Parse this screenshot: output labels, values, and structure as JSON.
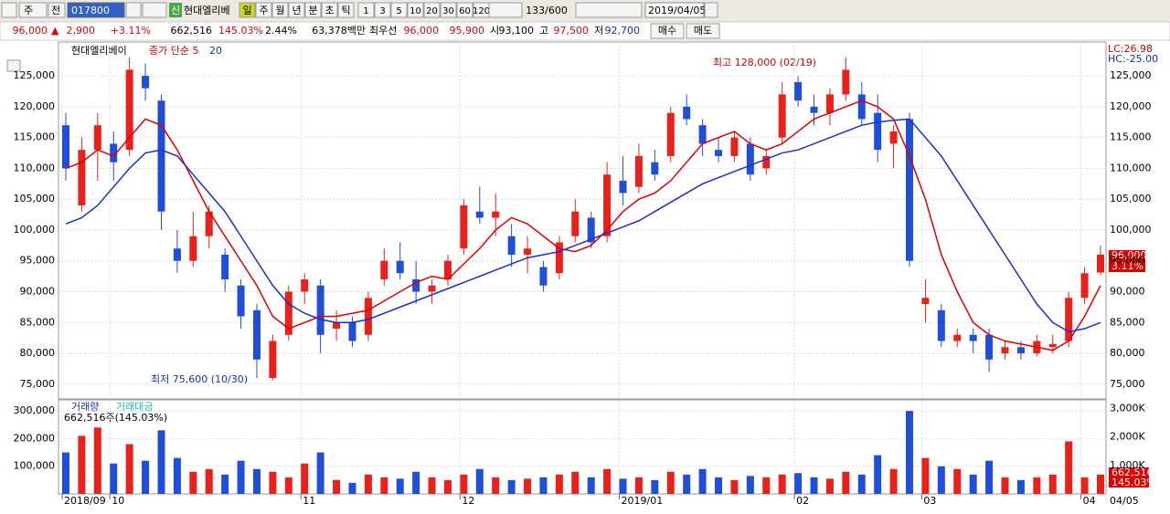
{
  "toolbar": {
    "period": "주",
    "prev": "전",
    "code": "017800",
    "sin": "신",
    "name": "현대엘리베",
    "intervals": [
      "일",
      "주",
      "월",
      "년",
      "분",
      "초",
      "틱"
    ],
    "steps": [
      "1",
      "3",
      "5",
      "10",
      "20",
      "30",
      "60",
      "120"
    ],
    "count": "133/600",
    "date": "2019/04/05"
  },
  "quote": {
    "price": "96,000",
    "arrow": "▲",
    "change": "2,900",
    "rate": "+3.11%",
    "volume": "662,516",
    "volume_rate": "145.03%",
    "turnover": "2.44%",
    "amount": "63,378백만",
    "best": "최우선",
    "ask": "96,000",
    "bid": "95,900",
    "open_label": "시",
    "open": "93,100",
    "high_label": "고",
    "high": "97,500",
    "low_label": "저",
    "low": "92,700",
    "buy": "매수",
    "sell": "매도"
  },
  "chart_data": [
    {
      "type": "candlestick",
      "title": "현대엘리베이",
      "lc": "LC:26.98",
      "hc": "HC:-25.00",
      "annotation_high": "최고 128,000 (02/19)",
      "annotation_low": "최저 75,600 (10/30)",
      "last_price_label": "96,000",
      "last_change_label": "3.11%",
      "last_date": "04/05",
      "up_color": "#e8211b",
      "down_color": "#1f4fd8",
      "ylim": [
        72600,
        130500
      ],
      "yticks": [
        {
          "value": 75000,
          "label": "75,000"
        },
        {
          "value": 80000,
          "label": "80,000"
        },
        {
          "value": 85000,
          "label": "85,000"
        },
        {
          "value": 90000,
          "label": "90,000"
        },
        {
          "value": 95000,
          "label": "95,000"
        },
        {
          "value": 100000,
          "label": "100,000"
        },
        {
          "value": 105000,
          "label": "105,000"
        },
        {
          "value": 110000,
          "label": "110,000"
        },
        {
          "value": 115000,
          "label": "115,000"
        },
        {
          "value": 120000,
          "label": "120,000"
        },
        {
          "value": 125000,
          "label": "125,000"
        }
      ],
      "categories": [
        "2018/09",
        null,
        null,
        "10",
        null,
        null,
        null,
        null,
        null,
        null,
        null,
        null,
        null,
        null,
        null,
        "11",
        null,
        null,
        null,
        null,
        null,
        null,
        null,
        null,
        null,
        "12",
        null,
        null,
        null,
        null,
        null,
        null,
        null,
        null,
        null,
        "2019/01",
        null,
        null,
        null,
        null,
        null,
        null,
        null,
        null,
        null,
        null,
        "02",
        null,
        null,
        null,
        null,
        null,
        null,
        null,
        "03",
        null,
        null,
        null,
        null,
        null,
        null,
        null,
        null,
        null,
        "04",
        null
      ],
      "ohlc": [
        [
          117000,
          119000,
          108000,
          110000
        ],
        [
          104000,
          115000,
          103000,
          113000
        ],
        [
          113000,
          119000,
          108000,
          117000
        ],
        [
          114000,
          116000,
          108000,
          111000
        ],
        [
          113000,
          128000,
          112000,
          126000
        ],
        [
          125000,
          127000,
          121000,
          123000
        ],
        [
          121000,
          122000,
          100000,
          103000
        ],
        [
          97000,
          100000,
          93000,
          95000
        ],
        [
          95000,
          103000,
          94000,
          99000
        ],
        [
          99000,
          104000,
          97000,
          103000
        ],
        [
          96000,
          97000,
          90000,
          92000
        ],
        [
          91000,
          92000,
          84000,
          86000
        ],
        [
          87000,
          88000,
          76000,
          79000
        ],
        [
          76000,
          83000,
          75600,
          82000
        ],
        [
          83000,
          91000,
          82000,
          90000
        ],
        [
          90000,
          93000,
          88000,
          92000
        ],
        [
          91000,
          92000,
          80000,
          83000
        ],
        [
          84000,
          87000,
          82000,
          85000
        ],
        [
          85000,
          86000,
          81000,
          82000
        ],
        [
          83000,
          90000,
          82000,
          89000
        ],
        [
          92000,
          97000,
          91000,
          95000
        ],
        [
          95000,
          98000,
          92000,
          93000
        ],
        [
          92000,
          95000,
          88000,
          90000
        ],
        [
          90000,
          92000,
          88000,
          91000
        ],
        [
          92000,
          96000,
          91000,
          95000
        ],
        [
          97000,
          105000,
          96000,
          104000
        ],
        [
          103000,
          107000,
          101000,
          102000
        ],
        [
          102000,
          106000,
          99000,
          103000
        ],
        [
          99000,
          101000,
          94000,
          96000
        ],
        [
          96000,
          99000,
          93000,
          97000
        ],
        [
          94000,
          95000,
          90000,
          91000
        ],
        [
          93000,
          99000,
          92000,
          98000
        ],
        [
          99000,
          105000,
          98000,
          103000
        ],
        [
          102000,
          103000,
          97000,
          98000
        ],
        [
          99000,
          111000,
          98000,
          109000
        ],
        [
          108000,
          112000,
          104000,
          106000
        ],
        [
          107000,
          114000,
          106000,
          112000
        ],
        [
          111000,
          113000,
          108000,
          109000
        ],
        [
          112000,
          120000,
          111000,
          119000
        ],
        [
          120000,
          122000,
          117000,
          118000
        ],
        [
          117000,
          118000,
          112000,
          114000
        ],
        [
          113000,
          115000,
          111000,
          112000
        ],
        [
          112000,
          116000,
          111000,
          115000
        ],
        [
          114000,
          115000,
          108000,
          109000
        ],
        [
          110000,
          113000,
          109000,
          112000
        ],
        [
          115000,
          124000,
          114000,
          122000
        ],
        [
          124000,
          125000,
          120000,
          121000
        ],
        [
          120000,
          122000,
          117000,
          119000
        ],
        [
          119000,
          123000,
          117000,
          122000
        ],
        [
          122000,
          128000,
          121000,
          126000
        ],
        [
          122000,
          124000,
          117000,
          118000
        ],
        [
          119000,
          122000,
          111000,
          113000
        ],
        [
          114000,
          117000,
          110000,
          116000
        ],
        [
          118000,
          119000,
          94000,
          95000
        ],
        [
          88000,
          92000,
          85000,
          89000
        ],
        [
          87000,
          88000,
          81000,
          82000
        ],
        [
          82000,
          84000,
          81000,
          83000
        ],
        [
          83000,
          84000,
          80000,
          82000
        ],
        [
          83000,
          84000,
          77000,
          79000
        ],
        [
          80000,
          82000,
          79000,
          81000
        ],
        [
          81000,
          82000,
          79000,
          80000
        ],
        [
          80000,
          83000,
          79500,
          82000
        ],
        [
          81000,
          83000,
          80000,
          81500
        ],
        [
          82000,
          90000,
          81000,
          89000
        ],
        [
          89000,
          94000,
          88000,
          93000
        ],
        [
          93100,
          97500,
          92700,
          96000
        ]
      ],
      "series": [
        {
          "name": "종가 단순 5",
          "color": "#e00000",
          "values": [
            110000,
            111000,
            113000,
            112000,
            115000,
            118000,
            117000,
            113000,
            108000,
            103000,
            99000,
            95000,
            91000,
            86000,
            84000,
            85000,
            86000,
            86000,
            86500,
            87000,
            88500,
            90000,
            91500,
            92500,
            92000,
            94500,
            97000,
            100000,
            102000,
            101000,
            99000,
            97000,
            96500,
            97500,
            100000,
            103000,
            105000,
            106000,
            108000,
            111000,
            114000,
            115000,
            116000,
            114000,
            113000,
            114000,
            116000,
            118000,
            119000,
            120000,
            121000,
            120000,
            118000,
            112000,
            105000,
            96000,
            90000,
            85000,
            83000,
            82000,
            81500,
            81000,
            80500,
            82000,
            86000,
            91000
          ]
        },
        {
          "name": "20",
          "color": "#1a2fd0",
          "values": [
            101000,
            102000,
            104000,
            107000,
            110000,
            112500,
            113000,
            112000,
            109000,
            106000,
            103000,
            99000,
            95000,
            91000,
            88000,
            86500,
            85500,
            85000,
            85000,
            85500,
            86500,
            87500,
            88500,
            89500,
            90500,
            91500,
            92500,
            93500,
            94500,
            95500,
            96000,
            96500,
            97500,
            98500,
            99500,
            100500,
            101500,
            103000,
            104500,
            106000,
            107500,
            108500,
            109500,
            110500,
            111500,
            112500,
            113000,
            114000,
            115000,
            116000,
            117000,
            117500,
            117800,
            118000,
            115000,
            112000,
            108000,
            104000,
            100000,
            96000,
            92000,
            88000,
            85000,
            83500,
            84000,
            85000
          ]
        }
      ]
    },
    {
      "type": "bar",
      "title": "거래량",
      "subtitle": "거래대금",
      "volume_label": "662,516주(145.03%)",
      "tag_volume": "662,516",
      "tag_rate": "145.03%",
      "ylim": [
        0,
        340000
      ],
      "yticks": [
        {
          "value": 100000,
          "label": "100,000"
        },
        {
          "value": 200000,
          "label": "200,000"
        },
        {
          "value": 300000,
          "label": "300,000"
        }
      ],
      "y2lim": [
        0,
        3300
      ],
      "y2ticks": [
        {
          "value": 1000,
          "label": "1,000K"
        },
        {
          "value": 2000,
          "label": "2,000K"
        },
        {
          "value": 3000,
          "label": "3,000K"
        }
      ],
      "values": [
        150000,
        210000,
        240000,
        110000,
        180000,
        120000,
        230000,
        130000,
        80000,
        90000,
        70000,
        120000,
        90000,
        80000,
        60000,
        110000,
        150000,
        50000,
        40000,
        70000,
        60000,
        55000,
        80000,
        60000,
        50000,
        70000,
        90000,
        60000,
        50000,
        55000,
        60000,
        70000,
        80000,
        60000,
        90000,
        55000,
        60000,
        50000,
        80000,
        70000,
        90000,
        60000,
        50000,
        65000,
        60000,
        70000,
        75000,
        60000,
        55000,
        80000,
        70000,
        140000,
        90000,
        300000,
        130000,
        100000,
        90000,
        70000,
        120000,
        60000,
        50000,
        60000,
        70000,
        190000,
        60000,
        70000
      ]
    }
  ]
}
